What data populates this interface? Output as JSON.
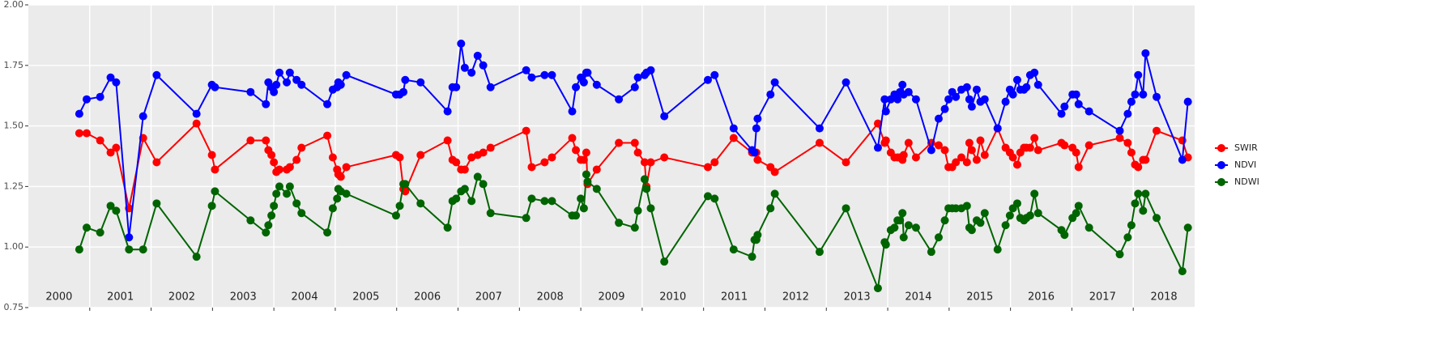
{
  "chart_data": {
    "type": "line",
    "x": [
      2000.83,
      2000.95,
      2001.17,
      2001.34,
      2001.43,
      2001.64,
      2001.87,
      2002.09,
      2002.74,
      2002.99,
      2003.04,
      2003.62,
      2003.87,
      2003.91,
      2003.96,
      2004.0,
      2004.04,
      2004.09,
      2004.21,
      2004.26,
      2004.37,
      2004.45,
      2004.87,
      2004.96,
      2005.03,
      2005.05,
      2005.09,
      2005.18,
      2005.99,
      2006.05,
      2006.11,
      2006.14,
      2006.39,
      2006.83,
      2006.91,
      2006.97,
      2007.05,
      2007.11,
      2007.22,
      2007.32,
      2007.41,
      2007.53,
      2008.11,
      2008.2,
      2008.41,
      2008.53,
      2008.86,
      2008.92,
      2009.0,
      2009.05,
      2009.09,
      2009.11,
      2009.26,
      2009.62,
      2009.88,
      2009.93,
      2010.04,
      2010.07,
      2010.14,
      2010.36,
      2011.07,
      2011.18,
      2011.49,
      2011.79,
      2011.83,
      2011.86,
      2011.88,
      2012.09,
      2012.16,
      2012.89,
      2013.32,
      2013.84,
      2013.95,
      2013.97,
      2014.05,
      2014.11,
      2014.16,
      2014.2,
      2014.24,
      2014.26,
      2014.34,
      2014.46,
      2014.71,
      2014.83,
      2014.93,
      2014.99,
      2015.05,
      2015.11,
      2015.2,
      2015.29,
      2015.33,
      2015.37,
      2015.45,
      2015.51,
      2015.58,
      2015.79,
      2015.92,
      2015.99,
      2016.04,
      2016.11,
      2016.16,
      2016.22,
      2016.26,
      2016.32,
      2016.39,
      2016.45,
      2016.83,
      2016.88,
      2017.01,
      2017.07,
      2017.11,
      2017.28,
      2017.78,
      2017.91,
      2017.97,
      2018.03,
      2018.08,
      2018.16,
      2018.2,
      2018.38,
      2018.8,
      2018.89
    ],
    "series": [
      {
        "name": "SWIR",
        "color": "#ff0000",
        "values": [
          1.47,
          1.47,
          1.44,
          1.39,
          1.41,
          1.16,
          1.45,
          1.35,
          1.51,
          1.38,
          1.32,
          1.44,
          1.44,
          1.4,
          1.38,
          1.35,
          1.31,
          1.32,
          1.32,
          1.33,
          1.36,
          1.41,
          1.46,
          1.37,
          1.32,
          1.3,
          1.29,
          1.33,
          1.38,
          1.37,
          1.24,
          1.23,
          1.38,
          1.44,
          1.36,
          1.35,
          1.32,
          1.32,
          1.37,
          1.38,
          1.39,
          1.41,
          1.48,
          1.33,
          1.35,
          1.37,
          1.45,
          1.4,
          1.36,
          1.36,
          1.39,
          1.26,
          1.32,
          1.43,
          1.43,
          1.39,
          1.35,
          1.25,
          1.35,
          1.37,
          1.33,
          1.35,
          1.45,
          1.39,
          1.39,
          1.39,
          1.36,
          1.33,
          1.31,
          1.43,
          1.35,
          1.51,
          1.43,
          1.44,
          1.39,
          1.37,
          1.37,
          1.37,
          1.36,
          1.38,
          1.43,
          1.37,
          1.43,
          1.42,
          1.4,
          1.33,
          1.33,
          1.35,
          1.37,
          1.35,
          1.43,
          1.4,
          1.36,
          1.44,
          1.38,
          1.49,
          1.41,
          1.39,
          1.37,
          1.34,
          1.39,
          1.41,
          1.41,
          1.41,
          1.45,
          1.4,
          1.43,
          1.42,
          1.41,
          1.39,
          1.33,
          1.42,
          1.45,
          1.43,
          1.39,
          1.34,
          1.33,
          1.36,
          1.36,
          1.48,
          1.44,
          1.37
        ]
      },
      {
        "name": "NDVI",
        "color": "#0000ff",
        "values": [
          1.55,
          1.61,
          1.62,
          1.7,
          1.68,
          1.04,
          1.54,
          1.71,
          1.55,
          1.67,
          1.66,
          1.64,
          1.59,
          1.68,
          1.66,
          1.64,
          1.67,
          1.72,
          1.68,
          1.72,
          1.69,
          1.67,
          1.59,
          1.65,
          1.66,
          1.68,
          1.67,
          1.71,
          1.63,
          1.63,
          1.64,
          1.69,
          1.68,
          1.56,
          1.66,
          1.66,
          1.84,
          1.74,
          1.72,
          1.79,
          1.75,
          1.66,
          1.73,
          1.7,
          1.71,
          1.71,
          1.56,
          1.66,
          1.7,
          1.68,
          1.72,
          1.72,
          1.67,
          1.61,
          1.66,
          1.7,
          1.71,
          1.72,
          1.73,
          1.54,
          1.69,
          1.71,
          1.49,
          1.4,
          1.39,
          1.49,
          1.53,
          1.63,
          1.68,
          1.49,
          1.68,
          1.41,
          1.61,
          1.56,
          1.61,
          1.63,
          1.61,
          1.64,
          1.67,
          1.63,
          1.64,
          1.61,
          1.4,
          1.53,
          1.57,
          1.61,
          1.64,
          1.62,
          1.65,
          1.66,
          1.61,
          1.58,
          1.65,
          1.6,
          1.61,
          1.49,
          1.6,
          1.65,
          1.63,
          1.69,
          1.65,
          1.65,
          1.66,
          1.71,
          1.72,
          1.67,
          1.55,
          1.58,
          1.63,
          1.63,
          1.59,
          1.56,
          1.48,
          1.55,
          1.6,
          1.63,
          1.71,
          1.63,
          1.8,
          1.62,
          1.36,
          1.6
        ]
      },
      {
        "name": "NDWI",
        "color": "#006400",
        "values": [
          0.99,
          1.08,
          1.06,
          1.17,
          1.15,
          0.99,
          0.99,
          1.18,
          0.96,
          1.17,
          1.23,
          1.11,
          1.06,
          1.09,
          1.13,
          1.17,
          1.22,
          1.25,
          1.22,
          1.25,
          1.18,
          1.14,
          1.06,
          1.16,
          1.2,
          1.24,
          1.23,
          1.22,
          1.13,
          1.17,
          1.26,
          1.26,
          1.18,
          1.08,
          1.19,
          1.2,
          1.23,
          1.24,
          1.19,
          1.29,
          1.26,
          1.14,
          1.12,
          1.2,
          1.19,
          1.19,
          1.13,
          1.13,
          1.2,
          1.16,
          1.3,
          1.27,
          1.24,
          1.1,
          1.08,
          1.15,
          1.28,
          1.24,
          1.16,
          0.94,
          1.21,
          1.2,
          0.99,
          0.96,
          1.03,
          1.03,
          1.05,
          1.16,
          1.22,
          0.98,
          1.16,
          0.83,
          1.02,
          1.01,
          1.07,
          1.08,
          1.11,
          1.11,
          1.14,
          1.04,
          1.09,
          1.08,
          0.98,
          1.04,
          1.11,
          1.16,
          1.16,
          1.16,
          1.16,
          1.17,
          1.08,
          1.07,
          1.11,
          1.1,
          1.14,
          0.99,
          1.09,
          1.13,
          1.16,
          1.18,
          1.12,
          1.11,
          1.12,
          1.13,
          1.22,
          1.14,
          1.07,
          1.05,
          1.12,
          1.14,
          1.17,
          1.08,
          0.97,
          1.04,
          1.09,
          1.18,
          1.22,
          1.15,
          1.22,
          1.12,
          0.9,
          1.08
        ]
      }
    ],
    "xlim": [
      2000,
      2019
    ],
    "xticks": [
      {
        "value": 2000.5,
        "label": "2000"
      },
      {
        "value": 2001.5,
        "label": "2001"
      },
      {
        "value": 2002.5,
        "label": "2002"
      },
      {
        "value": 2003.5,
        "label": "2003"
      },
      {
        "value": 2004.5,
        "label": "2004"
      },
      {
        "value": 2005.5,
        "label": "2005"
      },
      {
        "value": 2006.5,
        "label": "2006"
      },
      {
        "value": 2007.5,
        "label": "2007"
      },
      {
        "value": 2008.5,
        "label": "2008"
      },
      {
        "value": 2009.5,
        "label": "2009"
      },
      {
        "value": 2010.5,
        "label": "2010"
      },
      {
        "value": 2011.5,
        "label": "2011"
      },
      {
        "value": 2012.5,
        "label": "2012"
      },
      {
        "value": 2013.5,
        "label": "2013"
      },
      {
        "value": 2014.5,
        "label": "2014"
      },
      {
        "value": 2015.5,
        "label": "2015"
      },
      {
        "value": 2016.5,
        "label": "2016"
      },
      {
        "value": 2017.5,
        "label": "2017"
      },
      {
        "value": 2018.5,
        "label": "2018"
      }
    ],
    "xbreaks": [
      2001,
      2002,
      2003,
      2004,
      2005,
      2006,
      2007,
      2008,
      2009,
      2010,
      2011,
      2012,
      2013,
      2014,
      2015,
      2016,
      2017,
      2018
    ],
    "ylim": [
      0.75,
      2.0
    ],
    "yticks": [
      {
        "value": 0.75,
        "label": "0.75"
      },
      {
        "value": 1.0,
        "label": "1.00"
      },
      {
        "value": 1.25,
        "label": "1.25"
      },
      {
        "value": 1.5,
        "label": "1.50"
      },
      {
        "value": 1.75,
        "label": "1.75"
      },
      {
        "value": 2.0,
        "label": "2.00"
      }
    ],
    "grid": true,
    "legend": "right"
  }
}
